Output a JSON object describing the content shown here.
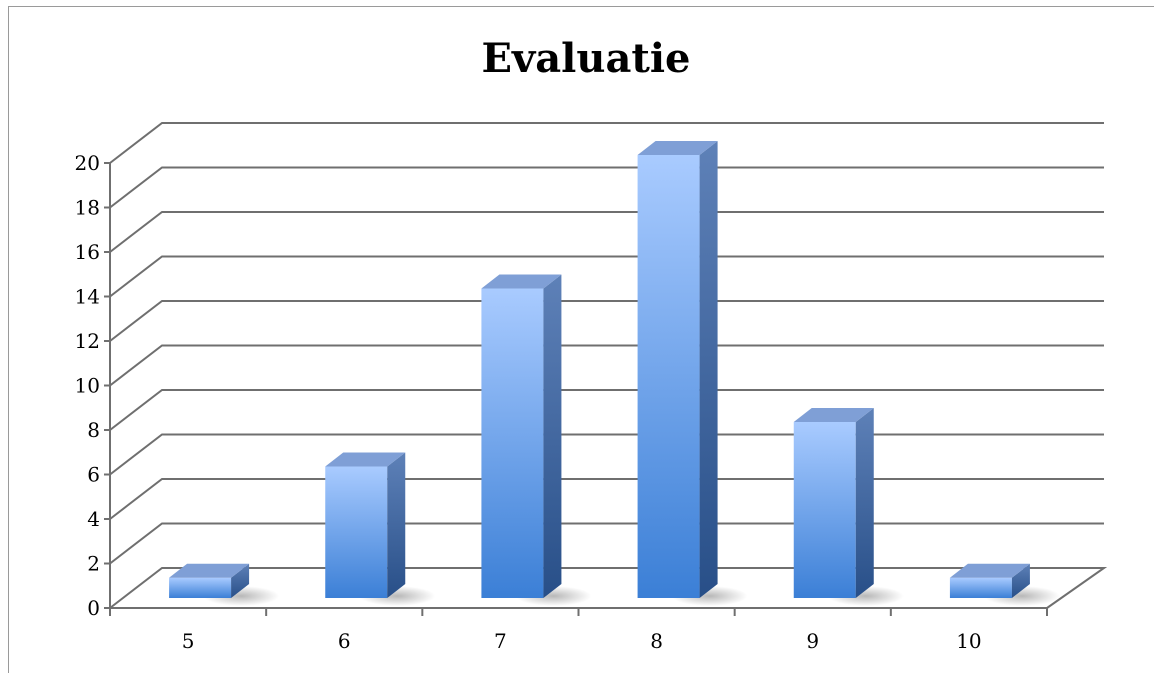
{
  "chart_data": {
    "type": "bar",
    "title": "Evaluatie",
    "categories": [
      "5",
      "6",
      "7",
      "8",
      "9",
      "10"
    ],
    "values": [
      1,
      6,
      14,
      20,
      8,
      1
    ],
    "xlabel": "",
    "ylabel": "",
    "ylim": [
      0,
      20
    ],
    "y_ticks": [
      "0",
      "2",
      "4",
      "6",
      "8",
      "10",
      "12",
      "14",
      "16",
      "18",
      "20"
    ],
    "grid": true,
    "legend": "none",
    "style": "3d-column",
    "colors": {
      "front_top": "#a9cbff",
      "front_bottom": "#3b7fd6",
      "side": "#2f5f9e",
      "top": "#7f9fd6"
    }
  }
}
